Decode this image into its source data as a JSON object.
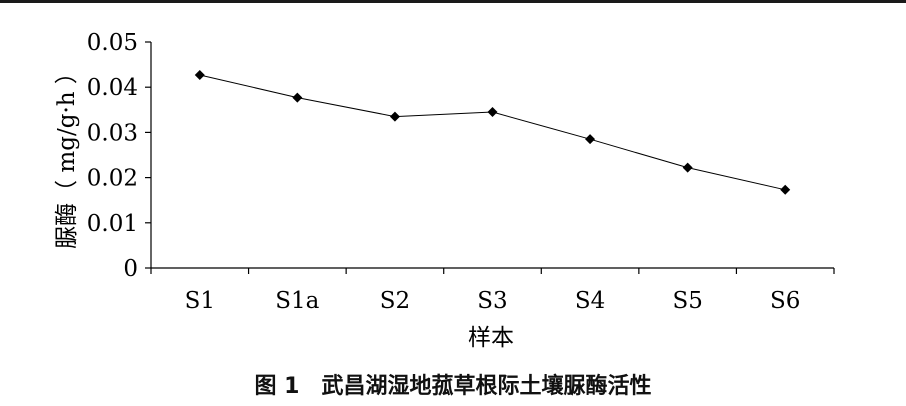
{
  "chart_data": {
    "type": "line",
    "categories": [
      "S1",
      "S1a",
      "S2",
      "S3",
      "S4",
      "S5",
      "S6"
    ],
    "series": [
      {
        "values": [
          0.0427,
          0.0377,
          0.0335,
          0.0345,
          0.0285,
          0.0222,
          0.0173
        ]
      }
    ],
    "ylim": [
      0,
      0.05
    ],
    "yticks": [
      "0",
      "0.01",
      "0.02",
      "0.03",
      "0.04",
      "0.05"
    ],
    "xlabel": "样本",
    "ylabel": "脲酶（ mg/g·h ）",
    "grid": false,
    "legend": "none"
  },
  "caption": "图 1　武昌湖湿地菰草根际土壤脲酶活性"
}
